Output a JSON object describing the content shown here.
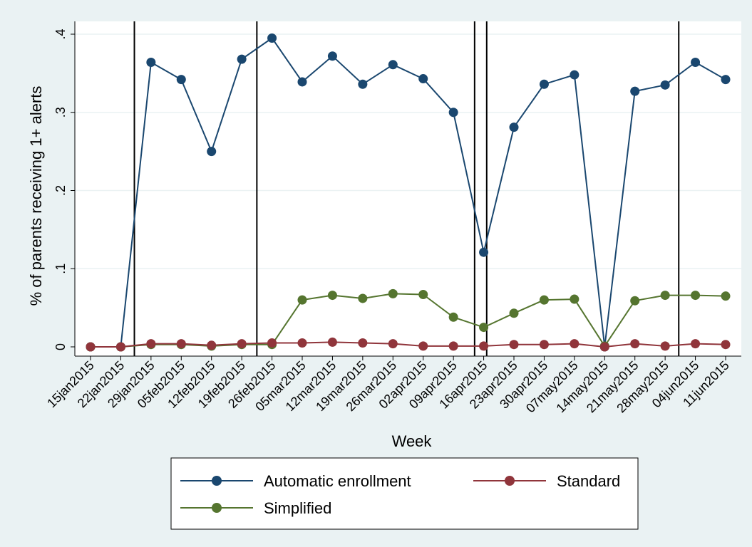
{
  "chart_data": {
    "type": "line",
    "xlabel": "Week",
    "ylabel": "% of parents receiving 1+ alerts",
    "ylim": [
      0,
      0.4
    ],
    "yticks": [
      0,
      0.1,
      0.2,
      0.3,
      0.4
    ],
    "ytick_labels": [
      "0",
      ".1",
      ".2",
      ".3",
      ".4"
    ],
    "categories": [
      "15jan2015",
      "22jan2015",
      "29jan2015",
      "05feb2015",
      "12feb2015",
      "19feb2015",
      "26feb2015",
      "05mar2015",
      "12mar2015",
      "19mar2015",
      "26mar2015",
      "02apr2015",
      "09apr2015",
      "16apr2015",
      "23apr2015",
      "30apr2015",
      "07may2015",
      "14may2015",
      "21may2015",
      "28may2015",
      "04jun2015",
      "11jun2015"
    ],
    "vlines": [
      1.45,
      5.5,
      12.7,
      13.1,
      19.45
    ],
    "grid": true,
    "legend_position": "bottom",
    "series": [
      {
        "name": "Automatic enrollment",
        "color": "#1a476f",
        "values": [
          0,
          0,
          0.364,
          0.342,
          0.25,
          0.368,
          0.395,
          0.339,
          0.372,
          0.336,
          0.361,
          0.343,
          0.3,
          0.121,
          0.281,
          0.336,
          0.348,
          0,
          0.327,
          0.335,
          0.364,
          0.342
        ]
      },
      {
        "name": "Standard",
        "color": "#90353b",
        "values": [
          0,
          0,
          0.004,
          0.004,
          0.002,
          0.004,
          0.005,
          0.005,
          0.006,
          0.005,
          0.004,
          0.001,
          0.001,
          0.001,
          0.003,
          0.003,
          0.004,
          0,
          0.004,
          0.001,
          0.004,
          0.003
        ]
      },
      {
        "name": "Simplified",
        "color": "#55752f",
        "values": [
          0,
          0,
          0.003,
          0.003,
          0.001,
          0.003,
          0.003,
          0.06,
          0.066,
          0.062,
          0.068,
          0.067,
          0.038,
          0.025,
          0.043,
          0.06,
          0.061,
          0.001,
          0.059,
          0.066,
          0.066,
          0.065
        ]
      }
    ]
  }
}
